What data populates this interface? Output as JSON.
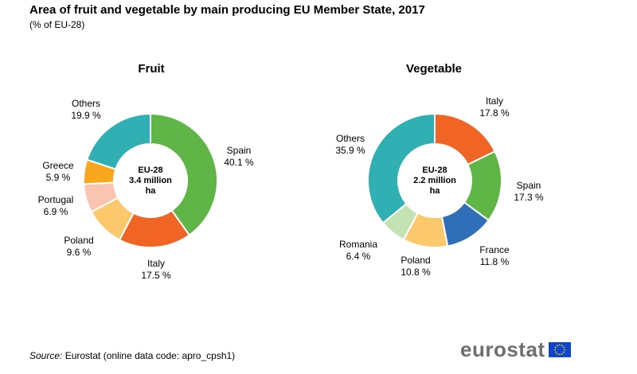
{
  "title": "Area of fruit and vegetable by main producing EU Member State, 2017",
  "subtitle": "(% of EU-28)",
  "source_label": "Source:",
  "source_text": " Eurostat (online data code: apro_cpsh1)",
  "logo_text": "eurostat",
  "colors": {
    "spain": "#5fb546",
    "italy": "#f06424",
    "france": "#2f6fb7",
    "poland": "#fbc86c",
    "romania": "#c3e3b3",
    "portugal": "#f9c5b0",
    "greece": "#f7a71b",
    "others": "#30b0b2",
    "eu_blue": "#0e47cb",
    "eu_star": "#ffdd00"
  },
  "chart_data": [
    {
      "type": "pie",
      "title": "Fruit",
      "center_label": [
        "EU-28",
        "3.4 million",
        "ha"
      ],
      "slices": [
        {
          "name": "Spain",
          "value": 40.1,
          "value_label": "40.1 %",
          "color_key": "spain"
        },
        {
          "name": "Italy",
          "value": 17.5,
          "value_label": "17.5 %",
          "color_key": "italy"
        },
        {
          "name": "Poland",
          "value": 9.6,
          "value_label": "9.6 %",
          "color_key": "poland"
        },
        {
          "name": "Portugal",
          "value": 6.9,
          "value_label": "6.9 %",
          "color_key": "portugal"
        },
        {
          "name": "Greece",
          "value": 5.9,
          "value_label": "5.9 %",
          "color_key": "greece"
        },
        {
          "name": "Others",
          "value": 19.9,
          "value_label": "19.9 %",
          "color_key": "others"
        }
      ]
    },
    {
      "type": "pie",
      "title": "Vegetable",
      "center_label": [
        "EU-28",
        "2.2 million",
        "ha"
      ],
      "slices": [
        {
          "name": "Italy",
          "value": 17.8,
          "value_label": "17.8 %",
          "color_key": "italy"
        },
        {
          "name": "Spain",
          "value": 17.3,
          "value_label": "17.3 %",
          "color_key": "spain"
        },
        {
          "name": "France",
          "value": 11.8,
          "value_label": "11.8 %",
          "color_key": "france"
        },
        {
          "name": "Poland",
          "value": 10.8,
          "value_label": "10.8 %",
          "color_key": "poland"
        },
        {
          "name": "Romania",
          "value": 6.4,
          "value_label": "6.4 %",
          "color_key": "romania"
        },
        {
          "name": "Others",
          "value": 35.9,
          "value_label": "35.9 %",
          "color_key": "others"
        }
      ]
    }
  ]
}
